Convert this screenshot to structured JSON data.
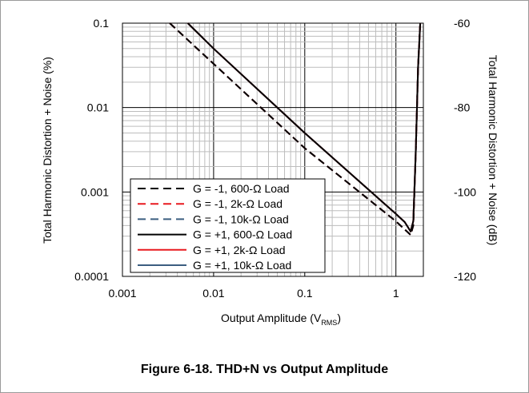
{
  "chart_data": {
    "type": "line",
    "x_scale": "log",
    "y_scale": "log",
    "xlabel": "Output Amplitude (V",
    "xlabel_sub": "RMS",
    "xlabel_end": ")",
    "ylabel": "Total Harmonic Distortion + Noise (%)",
    "y2label": "Total Harmonic Distortion + Noise (dB)",
    "xlim": [
      0.001,
      2
    ],
    "ylim": [
      0.0001,
      0.1
    ],
    "x_ticks": [
      "0.001",
      "0.01",
      "0.1",
      "1"
    ],
    "y_ticks": [
      "0.0001",
      "0.001",
      "0.01",
      "0.1"
    ],
    "y2_ticks": [
      "-120",
      "-100",
      "-80",
      "-60"
    ],
    "grid": true,
    "legend_position": "bottom-left",
    "series": [
      {
        "name": "G = -1, 600-Ω Load",
        "color": "#000000",
        "dash": true,
        "x": [
          0.0033,
          0.01,
          0.1,
          1.0,
          1.45,
          1.55,
          1.65,
          1.75,
          1.85
        ],
        "y": [
          0.1,
          0.033,
          0.0033,
          0.00045,
          0.00031,
          0.0004,
          0.003,
          0.03,
          0.1
        ]
      },
      {
        "name": "G = -1, 2k-Ω Load",
        "color": "#e8191f",
        "dash": true,
        "x": [
          0.0033,
          0.01,
          0.1,
          1.0,
          1.45,
          1.55,
          1.65,
          1.75,
          1.85
        ],
        "y": [
          0.1,
          0.033,
          0.0033,
          0.00045,
          0.00031,
          0.0004,
          0.003,
          0.03,
          0.1
        ]
      },
      {
        "name": "G = -1, 10k-Ω Load",
        "color": "#3b5e80",
        "dash": true,
        "x": [
          0.0033,
          0.01,
          0.1,
          1.0,
          1.45,
          1.55,
          1.65,
          1.75,
          1.85
        ],
        "y": [
          0.1,
          0.033,
          0.0033,
          0.00045,
          0.00031,
          0.0004,
          0.003,
          0.03,
          0.1
        ]
      },
      {
        "name": "G = +1, 600-Ω Load",
        "color": "#000000",
        "dash": false,
        "x": [
          0.0052,
          0.01,
          0.1,
          1.0,
          1.25,
          1.45,
          1.55,
          1.65,
          1.75,
          1.85
        ],
        "y": [
          0.1,
          0.05,
          0.005,
          0.00055,
          0.00044,
          0.00034,
          0.00045,
          0.003,
          0.03,
          0.1
        ]
      },
      {
        "name": "G = +1, 2k-Ω Load",
        "color": "#e8191f",
        "dash": false,
        "x": [
          0.0052,
          0.01,
          0.1,
          1.0,
          1.25,
          1.45,
          1.55,
          1.65,
          1.75,
          1.85
        ],
        "y": [
          0.1,
          0.05,
          0.005,
          0.00055,
          0.00044,
          0.00034,
          0.00045,
          0.003,
          0.03,
          0.1
        ]
      },
      {
        "name": "G = +1, 10k-Ω Load",
        "color": "#3b5e80",
        "dash": false,
        "x": [
          0.0052,
          0.01,
          0.1,
          1.0,
          1.25,
          1.45,
          1.55,
          1.65,
          1.75,
          1.85
        ],
        "y": [
          0.1,
          0.05,
          0.005,
          0.00055,
          0.00044,
          0.00034,
          0.00045,
          0.003,
          0.03,
          0.1
        ]
      }
    ]
  },
  "caption": "Figure 6-18. THD+N vs Output Amplitude"
}
